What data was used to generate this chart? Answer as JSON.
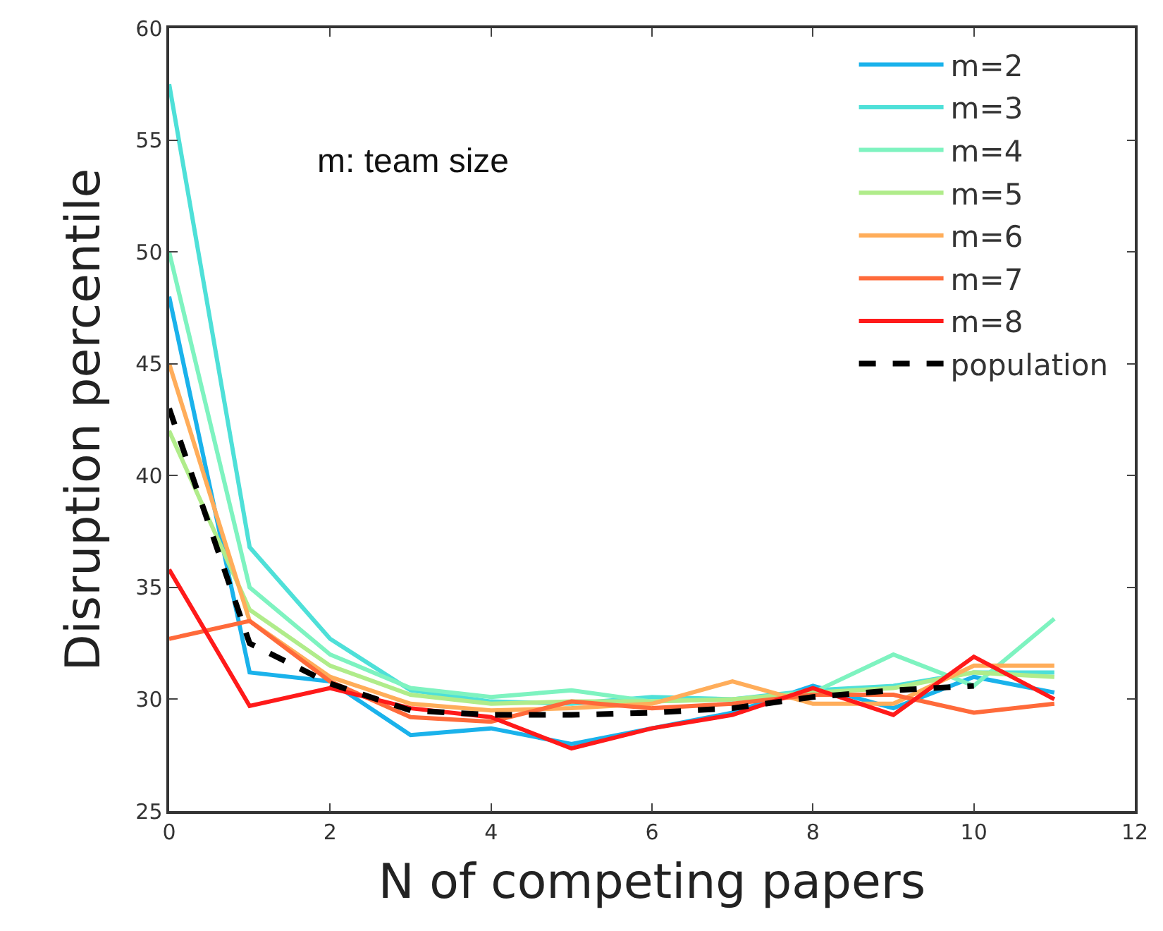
{
  "chart_data": {
    "type": "line",
    "xlabel": "N of competing papers",
    "ylabel": "Disruption percentile",
    "x": [
      0,
      1,
      2,
      3,
      4,
      5,
      6,
      7,
      8,
      9,
      10,
      11
    ],
    "xlim": [
      0,
      12
    ],
    "xticks": [
      0,
      2,
      4,
      6,
      8,
      10,
      12
    ],
    "ylim": [
      25,
      60
    ],
    "yticks": [
      25,
      30,
      35,
      40,
      45,
      50,
      55,
      60
    ],
    "legend": "top right",
    "marker": "none",
    "annotations": [
      "m: team size"
    ],
    "series": [
      {
        "name": "m=2",
        "color": "#1ab2eb",
        "values": [
          48,
          31.2,
          30.8,
          28.4,
          28.7,
          28.0,
          28.7,
          29.4,
          30.6,
          29.6,
          31.0,
          30.3
        ]
      },
      {
        "name": "m=3",
        "color": "#4ee0d8",
        "values": [
          57.5,
          36.8,
          32.7,
          30.4,
          29.9,
          29.8,
          30.1,
          30.0,
          30.4,
          30.6,
          31.2,
          31.2
        ]
      },
      {
        "name": "m=4",
        "color": "#7ef3c0",
        "values": [
          50,
          35,
          32,
          30.5,
          30.1,
          30.4,
          29.9,
          30.0,
          30.3,
          32.0,
          30.6,
          33.6
        ]
      },
      {
        "name": "m=5",
        "color": "#b0ec8a",
        "values": [
          42,
          34,
          31.5,
          30.2,
          29.8,
          29.9,
          29.9,
          30.0,
          30.3,
          30.5,
          31.2,
          31.0
        ]
      },
      {
        "name": "m=6",
        "color": "#ffad5a",
        "values": [
          45,
          33.5,
          31,
          29.8,
          29.5,
          29.6,
          29.8,
          30.8,
          29.8,
          29.8,
          31.5,
          31.5
        ]
      },
      {
        "name": "m=7",
        "color": "#ff6a3a",
        "values": [
          32.7,
          33.5,
          30.8,
          29.2,
          29.0,
          29.9,
          29.6,
          29.8,
          30.2,
          30.2,
          29.4,
          29.8
        ]
      },
      {
        "name": "m=8",
        "color": "#ff1a1a",
        "values": [
          35.8,
          29.7,
          30.5,
          29.6,
          29.2,
          27.8,
          28.7,
          29.3,
          30.5,
          29.3,
          31.9,
          30.0
        ]
      },
      {
        "name": "population",
        "color": "#000000",
        "line_style": "dashed",
        "values": [
          43,
          32.5,
          30.7,
          29.5,
          29.3,
          29.3,
          29.4,
          29.6,
          30.1,
          30.4,
          30.6,
          null
        ]
      }
    ]
  }
}
